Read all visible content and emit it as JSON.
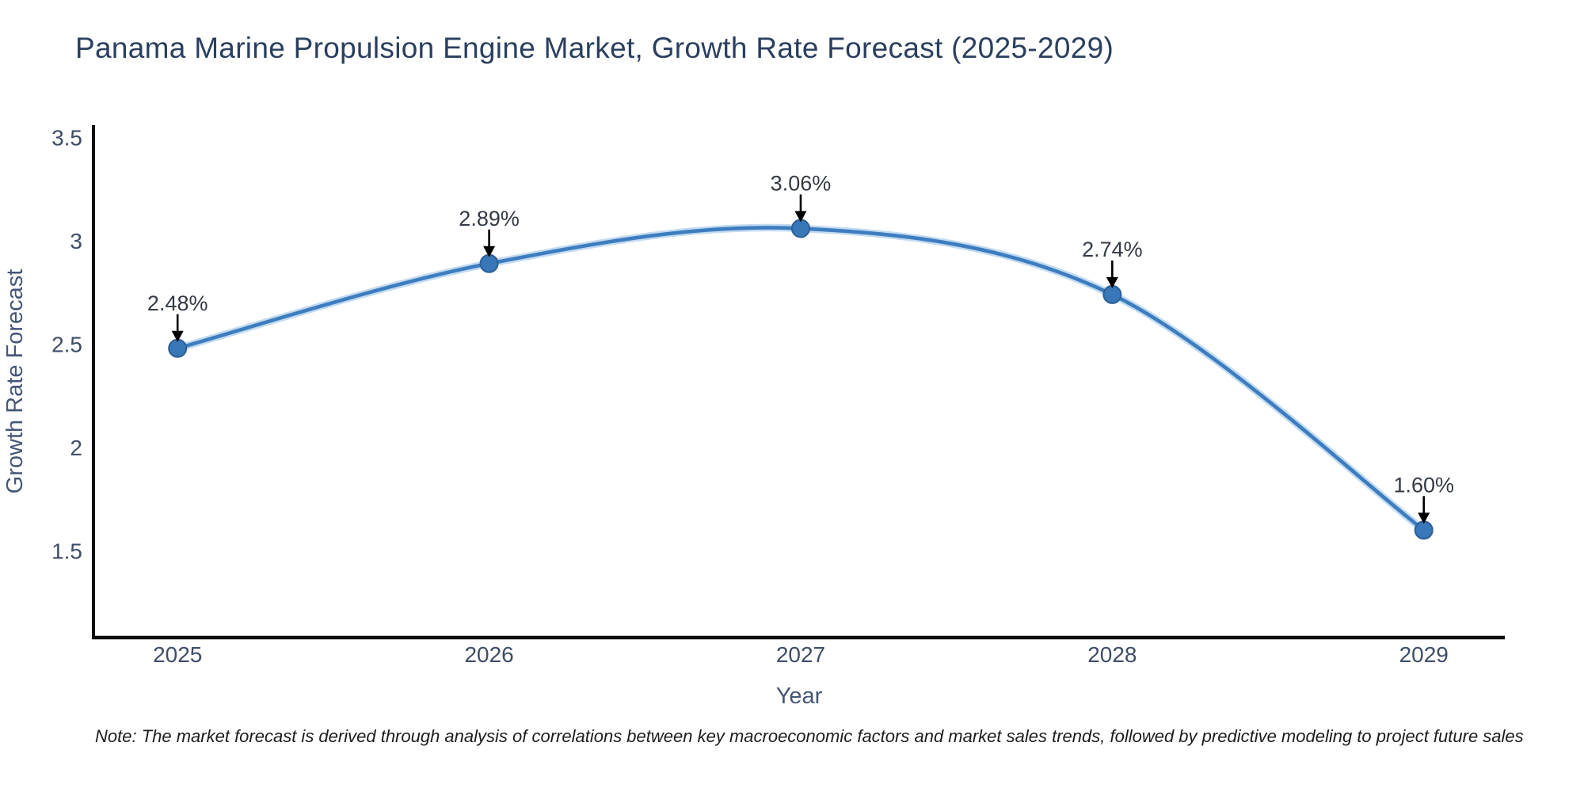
{
  "title": {
    "text": "Panama Marine Propulsion Engine Market, Growth Rate Forecast (2025-2029)",
    "color": "#2a3f5f"
  },
  "note": {
    "text": "Note: The market forecast is derived through analysis of correlations between key macroeconomic factors and market sales trends, followed by predictive modeling to project future sales"
  },
  "chart_data": {
    "type": "line",
    "title": "Panama Marine Propulsion Engine Market, Growth Rate Forecast (2025-2029)",
    "x": [
      2025,
      2026,
      2027,
      2028,
      2029
    ],
    "x_tick_labels": [
      "2025",
      "2026",
      "2027",
      "2028",
      "2029"
    ],
    "series": [
      {
        "name": "Growth Rate Forecast",
        "values": [
          2.48,
          2.89,
          3.06,
          2.74,
          1.6
        ]
      }
    ],
    "point_labels": [
      "2.48%",
      "2.89%",
      "3.06%",
      "2.74%",
      "1.60%"
    ],
    "xlabel": "Year",
    "ylabel": "Growth Rate Forecast",
    "y_ticks": [
      3.5,
      3,
      2.5,
      2,
      1.5
    ],
    "y_tick_labels": [
      "3.5",
      "3",
      "2.5",
      "2",
      "1.5"
    ],
    "ylim": [
      1.08,
      3.56
    ],
    "xlim": [
      2024.73,
      2029.26
    ],
    "grid": false,
    "legend_position": "none",
    "line_shape": "spline",
    "annotations_arrow": "down",
    "colors": {
      "line": "#3d7dbf",
      "line_halo": "#adcfeb",
      "marker_fill": "#3877b8",
      "marker_edge": "#2d5f96",
      "axis_line": "#0d0d0d",
      "tick_label": "#3e4d68",
      "axis_title": "#455677",
      "annotation_text": "#333a45",
      "annotation_arrow": "#000000",
      "title": "#2a3f5f",
      "background": "#ffffff"
    }
  }
}
